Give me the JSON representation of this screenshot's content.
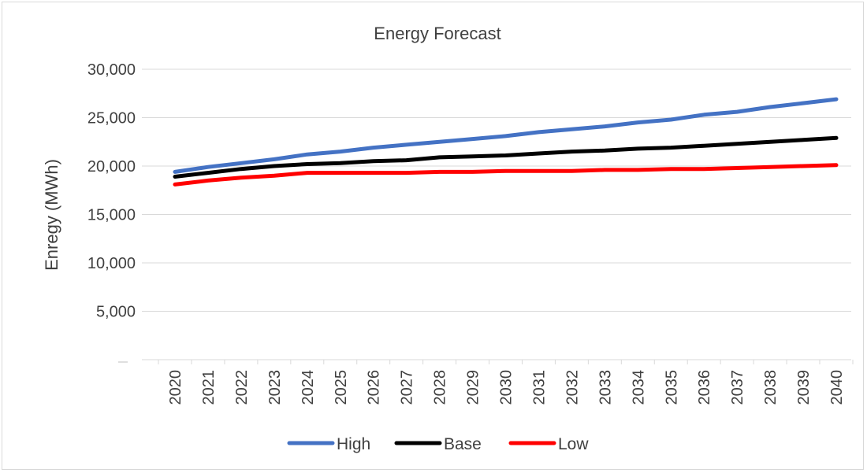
{
  "chart_data": {
    "type": "line",
    "title": "Energy Forecast",
    "xlabel": "",
    "ylabel": "Enregy (MWh)",
    "ylim": [
      0,
      30000
    ],
    "yticks": [
      "",
      "5,000",
      "10,000",
      "15,000",
      "20,000",
      "25,000",
      "30,000"
    ],
    "ytick_values": [
      0,
      5000,
      10000,
      15000,
      20000,
      25000,
      30000
    ],
    "grid": true,
    "legend_position": "bottom",
    "categories": [
      "2020",
      "2021",
      "2022",
      "2023",
      "2024",
      "2025",
      "2026",
      "2027",
      "2028",
      "2029",
      "2030",
      "2031",
      "2032",
      "2033",
      "2034",
      "2035",
      "2036",
      "2037",
      "2038",
      "2039",
      "2040"
    ],
    "series": [
      {
        "name": "High",
        "color": "#4472c4",
        "values": [
          19400,
          19900,
          20300,
          20700,
          21200,
          21500,
          21900,
          22200,
          22500,
          22800,
          23100,
          23500,
          23800,
          24100,
          24500,
          24800,
          25300,
          25600,
          26100,
          26500,
          26900
        ]
      },
      {
        "name": "Base",
        "color": "#000000",
        "values": [
          18900,
          19300,
          19700,
          20000,
          20200,
          20300,
          20500,
          20600,
          20900,
          21000,
          21100,
          21300,
          21500,
          21600,
          21800,
          21900,
          22100,
          22300,
          22500,
          22700,
          22900
        ]
      },
      {
        "name": "Low",
        "color": "#ff0000",
        "values": [
          18100,
          18500,
          18800,
          19000,
          19300,
          19300,
          19300,
          19300,
          19400,
          19400,
          19500,
          19500,
          19500,
          19600,
          19600,
          19700,
          19700,
          19800,
          19900,
          20000,
          20100
        ]
      }
    ]
  }
}
